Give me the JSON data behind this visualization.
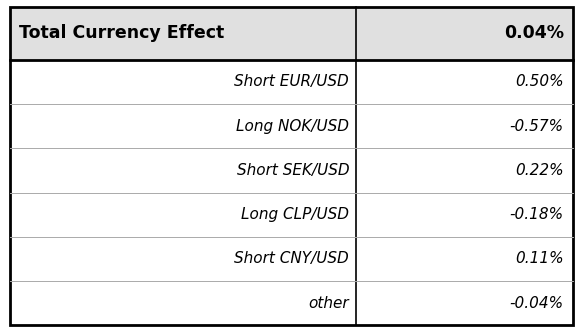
{
  "header_label": "Total Currency Effect",
  "header_value": "0.04%",
  "rows": [
    {
      "label": "Short EUR/USD",
      "value": "0.50%"
    },
    {
      "label": "Long NOK/USD",
      "value": "-0.57%"
    },
    {
      "label": "Short SEK/USD",
      "value": "0.22%"
    },
    {
      "label": "Long CLP/USD",
      "value": "-0.18%"
    },
    {
      "label": "Short CNY/USD",
      "value": "0.11%"
    },
    {
      "label": "other",
      "value": "-0.04%"
    }
  ],
  "header_bg": "#e0e0e0",
  "body_bg": "#ffffff",
  "border_color": "#000000",
  "row_line_color": "#aaaaaa",
  "header_font_size": 12.5,
  "row_font_size": 11,
  "col_split": 0.615,
  "fig_width": 5.83,
  "fig_height": 3.32,
  "dpi": 100
}
